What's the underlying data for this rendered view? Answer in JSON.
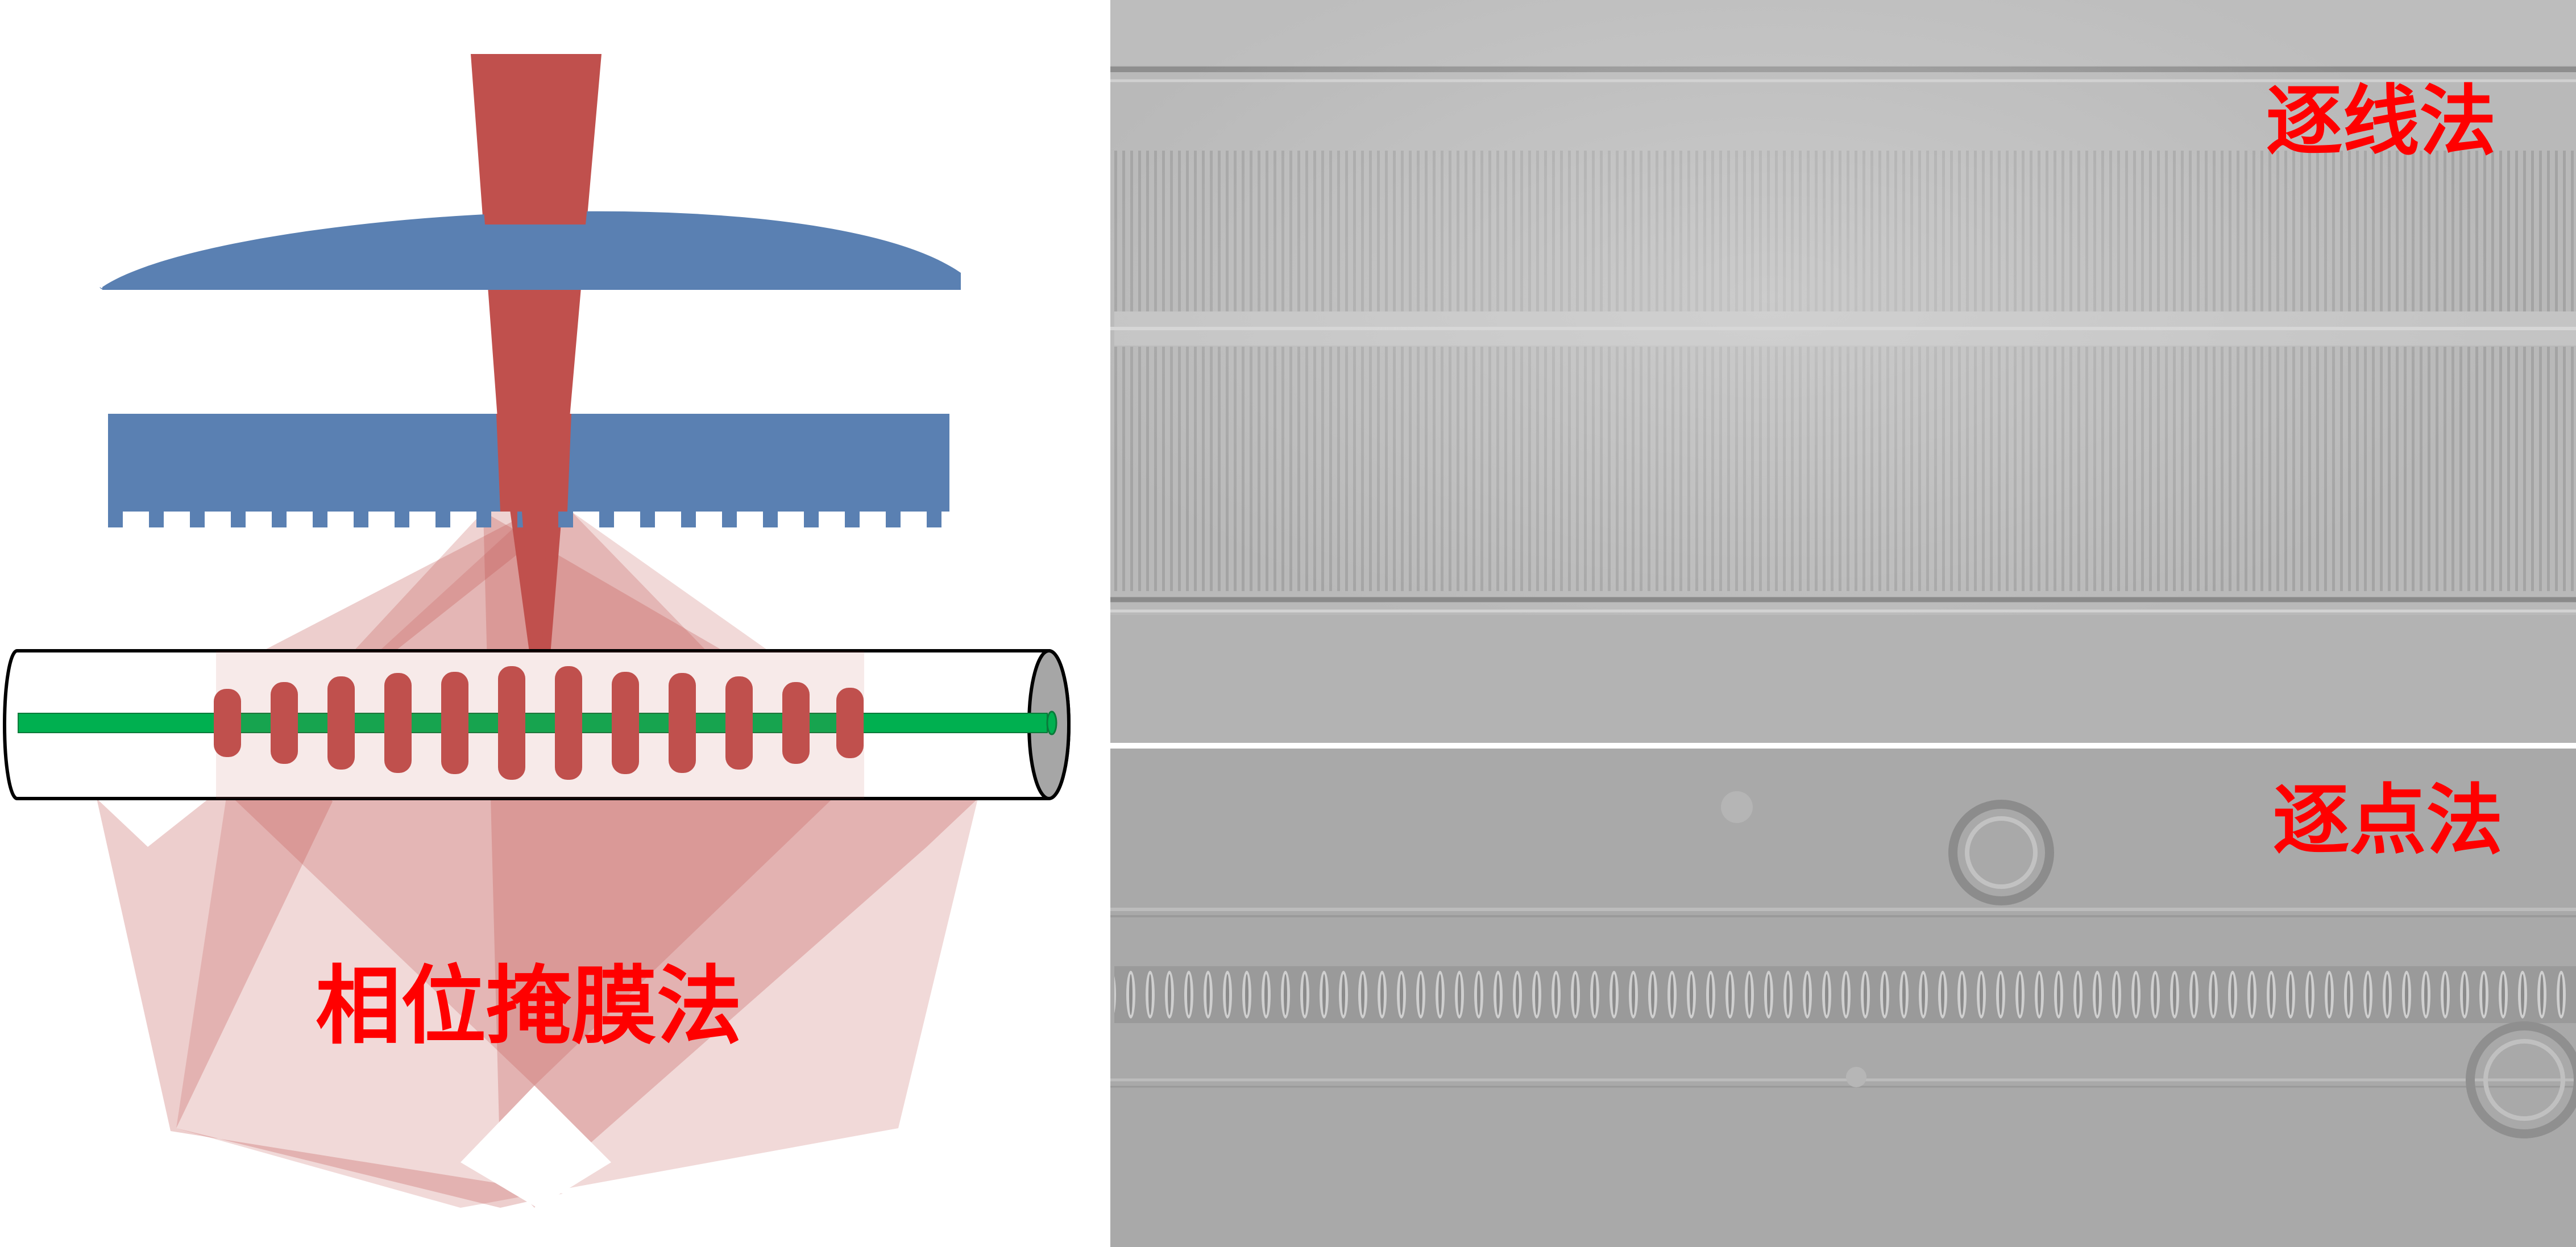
{
  "labels": {
    "phase_mask": "相位掩膜法",
    "line_by_line": "逐线法",
    "point_by_point": "逐点法"
  },
  "colors": {
    "lens": "#5a80b2",
    "laser": "#c0504d",
    "diffraction_light": "#c0504d",
    "fiber_core": "#00b050",
    "label_text": "#ff0000",
    "micrograph_bg": "#a9a9a9"
  }
}
